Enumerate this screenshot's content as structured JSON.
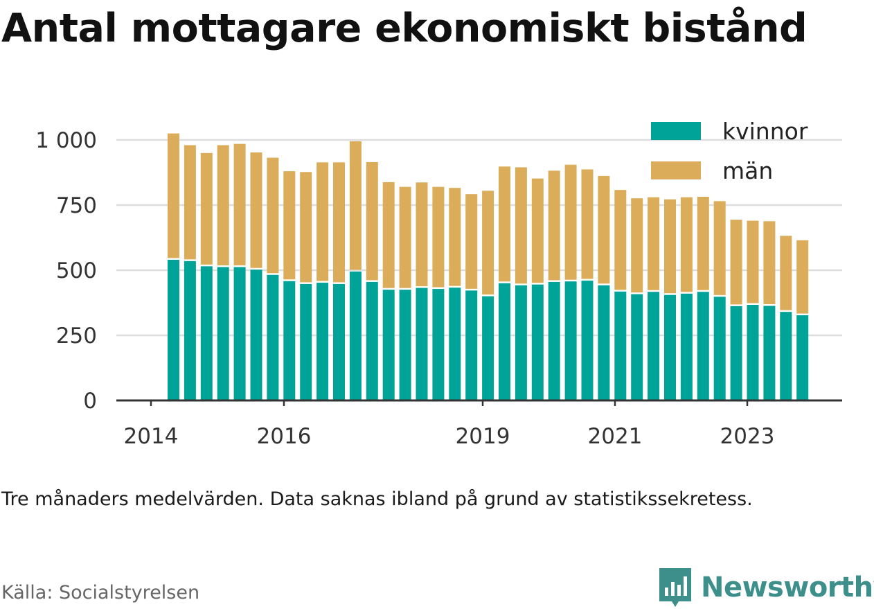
{
  "title": "Antal mottagare ekonomiskt bistånd",
  "note": "Tre månaders medelvärden. Data saknas ibland på grund av statistikssekretess.",
  "source": "Källa: Socialstyrelsen",
  "brand": "Newsworthy",
  "colors": {
    "kvinnor": "#00a398",
    "man": "#dbad5a",
    "grid": "#dddddd",
    "axis": "#333333",
    "brand": "#3d8f8c"
  },
  "chart_data": {
    "type": "bar",
    "stacked": true,
    "x_ticks": [
      "2014",
      "2016",
      "2019",
      "2021",
      "2023"
    ],
    "y_ticks": [
      "0",
      "250",
      "500",
      "750",
      "1 000"
    ],
    "ylim": [
      0,
      1000
    ],
    "grid": true,
    "legend_position": "top-right",
    "series": [
      {
        "name": "kvinnor",
        "color": "#00a398",
        "values": [
          540,
          535,
          515,
          512,
          512,
          502,
          482,
          458,
          447,
          452,
          447,
          495,
          455,
          425,
          425,
          432,
          428,
          433,
          422,
          400,
          450,
          442,
          445,
          455,
          457,
          460,
          442,
          418,
          408,
          417,
          405,
          410,
          417,
          398,
          362,
          367,
          363,
          340,
          327
        ]
      },
      {
        "name": "män",
        "color": "#dbad5a",
        "values": [
          485,
          445,
          435,
          468,
          473,
          450,
          450,
          422,
          430,
          462,
          467,
          500,
          460,
          413,
          395,
          405,
          392,
          383,
          370,
          405,
          448,
          453,
          407,
          427,
          448,
          427,
          420,
          390,
          368,
          363,
          367,
          370,
          365,
          367,
          332,
          323,
          325,
          292,
          288
        ]
      }
    ]
  }
}
